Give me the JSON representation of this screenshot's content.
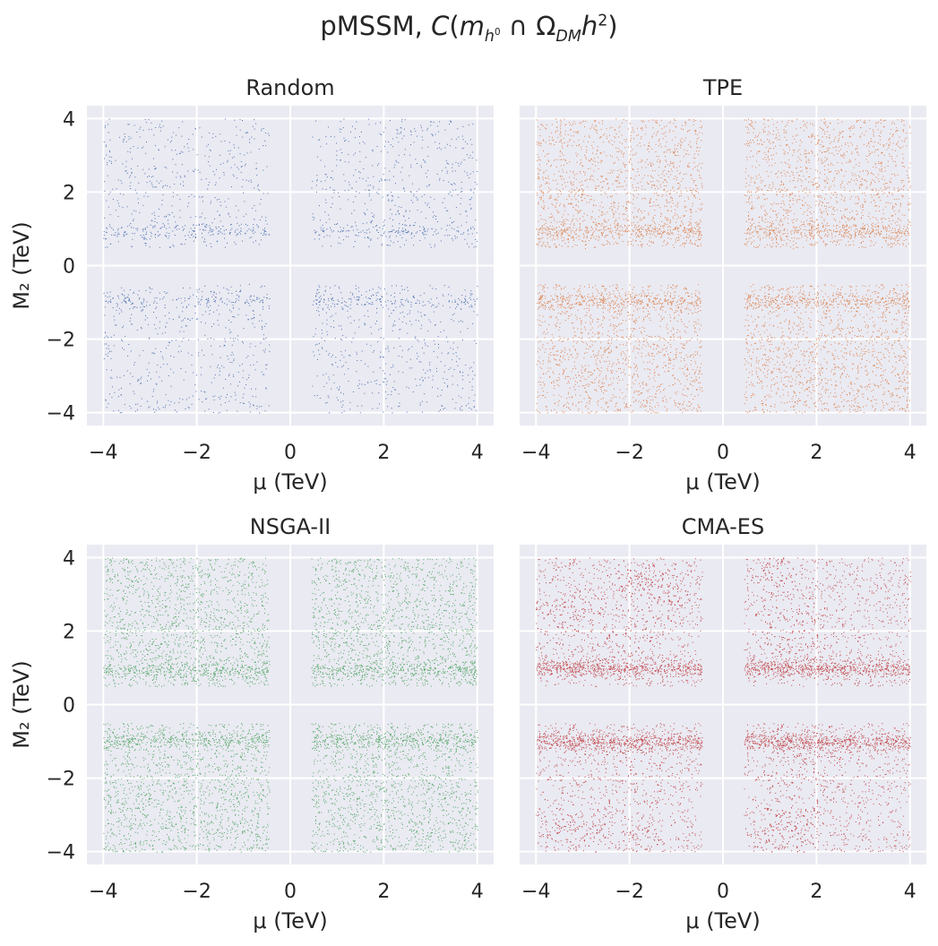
{
  "figure": {
    "suptitle_prefix": "pMSSM, ",
    "suptitle_C": "C",
    "suptitle_open": "(",
    "suptitle_m": "m",
    "suptitle_msub": "h",
    "suptitle_msubsup": "0",
    "suptitle_cap": " ∩ Ω",
    "suptitle_omsub": "DM",
    "suptitle_h": "h",
    "suptitle_hsup": "2",
    "suptitle_close": ")"
  },
  "chart_data": [
    {
      "type": "scatter",
      "title": "Random",
      "color": "#4c72b0",
      "xlabel": "μ (TeV)",
      "ylabel": "M₂ (TeV)",
      "xlim": [
        -4.35,
        4.35
      ],
      "ylim": [
        -4.35,
        4.35
      ],
      "xticks": [
        -4,
        -2,
        0,
        2,
        4
      ],
      "yticks": [
        -4,
        -2,
        0,
        2,
        4
      ],
      "xtick_labels": [
        "−4",
        "−2",
        "0",
        "2",
        "4"
      ],
      "ytick_labels": [
        "−4",
        "−2",
        "0",
        "2",
        "4"
      ],
      "grid": true,
      "density": "sparse",
      "point_count_rendered": 2600,
      "regions": [
        {
          "mu": [
            -4,
            -0.45
          ],
          "m2": [
            0.5,
            4
          ]
        },
        {
          "mu": [
            0.45,
            4
          ],
          "m2": [
            0.5,
            4
          ]
        },
        {
          "mu": [
            -4,
            -0.45
          ],
          "m2": [
            -4,
            -0.5
          ]
        },
        {
          "mu": [
            0.45,
            4
          ],
          "m2": [
            -4,
            -0.5
          ]
        }
      ],
      "dense_bands_m2": [
        0.95,
        -0.95
      ]
    },
    {
      "type": "scatter",
      "title": "TPE",
      "color": "#dd8452",
      "xlabel": "μ (TeV)",
      "ylabel": "",
      "xlim": [
        -4.35,
        4.35
      ],
      "ylim": [
        -4.35,
        4.35
      ],
      "xticks": [
        -4,
        -2,
        0,
        2,
        4
      ],
      "yticks": [
        -4,
        -2,
        0,
        2,
        4
      ],
      "xtick_labels": [
        "−4",
        "−2",
        "0",
        "2",
        "4"
      ],
      "ytick_labels": [],
      "grid": true,
      "density": "dense",
      "point_count_rendered": 7000,
      "regions": [
        {
          "mu": [
            -4,
            -0.45
          ],
          "m2": [
            0.5,
            4
          ]
        },
        {
          "mu": [
            0.45,
            4
          ],
          "m2": [
            0.5,
            4
          ]
        },
        {
          "mu": [
            -4,
            -0.45
          ],
          "m2": [
            -4,
            -0.5
          ]
        },
        {
          "mu": [
            0.45,
            4
          ],
          "m2": [
            -4,
            -0.5
          ]
        }
      ],
      "dense_bands_m2": [
        0.95,
        -0.95
      ]
    },
    {
      "type": "scatter",
      "title": "NSGA-II",
      "color": "#55a868",
      "xlabel": "μ (TeV)",
      "ylabel": "M₂ (TeV)",
      "xlim": [
        -4.35,
        4.35
      ],
      "ylim": [
        -4.35,
        4.35
      ],
      "xticks": [
        -4,
        -2,
        0,
        2,
        4
      ],
      "yticks": [
        -4,
        -2,
        0,
        2,
        4
      ],
      "xtick_labels": [
        "−4",
        "−2",
        "0",
        "2",
        "4"
      ],
      "ytick_labels": [
        "−4",
        "−2",
        "0",
        "2",
        "4"
      ],
      "grid": true,
      "density": "dense",
      "point_count_rendered": 7500,
      "regions": [
        {
          "mu": [
            -4,
            -0.45
          ],
          "m2": [
            0.5,
            4
          ]
        },
        {
          "mu": [
            0.45,
            4
          ],
          "m2": [
            0.5,
            4
          ]
        },
        {
          "mu": [
            -4,
            -0.45
          ],
          "m2": [
            -4,
            -0.5
          ]
        },
        {
          "mu": [
            0.45,
            4
          ],
          "m2": [
            -4,
            -0.5
          ]
        }
      ],
      "dense_bands_m2": [
        0.95,
        -0.95
      ]
    },
    {
      "type": "scatter",
      "title": "CMA-ES",
      "color": "#c44e52",
      "xlabel": "μ (TeV)",
      "ylabel": "",
      "xlim": [
        -4.35,
        4.35
      ],
      "ylim": [
        -4.35,
        4.35
      ],
      "xticks": [
        -4,
        -2,
        0,
        2,
        4
      ],
      "yticks": [
        -4,
        -2,
        0,
        2,
        4
      ],
      "xtick_labels": [
        "−4",
        "−2",
        "0",
        "2",
        "4"
      ],
      "ytick_labels": [],
      "grid": true,
      "density": "clustered",
      "point_count_rendered": 9000,
      "regions": [
        {
          "mu": [
            -4,
            -0.45
          ],
          "m2": [
            0.5,
            4
          ]
        },
        {
          "mu": [
            0.45,
            4
          ],
          "m2": [
            0.5,
            4
          ]
        },
        {
          "mu": [
            -4,
            -0.45
          ],
          "m2": [
            -4,
            -0.5
          ]
        },
        {
          "mu": [
            0.45,
            4
          ],
          "m2": [
            -4,
            -0.5
          ]
        }
      ],
      "dense_bands_m2": [
        1.0,
        -1.0
      ],
      "clusters": [
        {
          "mu": -3.4,
          "m2": 2.4
        },
        {
          "mu": -1.2,
          "m2": 3.1
        },
        {
          "mu": -1.8,
          "m2": 3.6
        },
        {
          "mu": 1.4,
          "m2": -3.2
        },
        {
          "mu": 1.1,
          "m2": -3.8
        },
        {
          "mu": -3.3,
          "m2": -3.5
        },
        {
          "mu": -1.8,
          "m2": -3.7
        },
        {
          "mu": 1.0,
          "m2": 3.5
        },
        {
          "mu": -2.0,
          "m2": 1.8
        },
        {
          "mu": 1.6,
          "m2": 1.8
        },
        {
          "mu": -1.9,
          "m2": -1.7
        },
        {
          "mu": 1.8,
          "m2": -1.6
        }
      ]
    }
  ]
}
